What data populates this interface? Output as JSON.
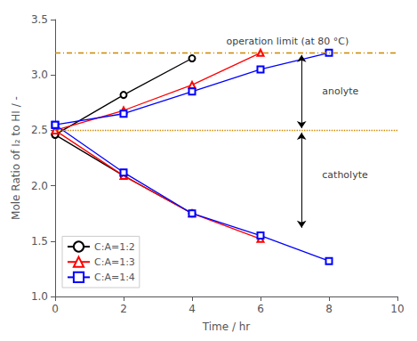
{
  "chart_data": {
    "type": "line",
    "xlabel": "Time / hr",
    "ylabel": "Mole Ratio of I₂ to HI / -",
    "xlim": [
      0,
      10
    ],
    "ylim": [
      1.0,
      3.5
    ],
    "xticks": [
      0,
      2,
      4,
      6,
      8,
      10
    ],
    "yticks": [
      {
        "value": 1.0,
        "label": "1.0"
      },
      1.5,
      {
        "value": 2.0,
        "label": "2.0"
      },
      2.5,
      {
        "value": 3.0,
        "label": "3.0"
      },
      3.5
    ],
    "grid": false,
    "legend": "lower left",
    "series": [
      {
        "name": "C:A=1:2",
        "color": "black",
        "marker": "open circle",
        "x": [
          0,
          2,
          4
        ],
        "values": [
          2.46,
          2.82,
          3.15
        ]
      },
      {
        "name": "C:A=1:2",
        "color": "black",
        "marker": "open circle",
        "x": [
          0,
          2,
          4
        ],
        "values": [
          2.46,
          2.09,
          1.75
        ]
      },
      {
        "name": "C:A=1:3",
        "color": "red",
        "marker": "open triangle",
        "x": [
          0,
          2,
          4,
          6
        ],
        "values": [
          2.5,
          2.68,
          2.91,
          3.2
        ]
      },
      {
        "name": "C:A=1:3",
        "color": "red",
        "marker": "open triangle",
        "x": [
          0,
          2,
          4,
          6
        ],
        "values": [
          2.5,
          2.09,
          1.75,
          1.52
        ]
      },
      {
        "name": "C:A=1:4",
        "color": "blue",
        "marker": "open square",
        "x": [
          0,
          2,
          4,
          6,
          8
        ],
        "values": [
          2.55,
          2.65,
          2.85,
          3.05,
          3.2
        ]
      },
      {
        "name": "C:A=1:4",
        "color": "blue",
        "marker": "open square",
        "x": [
          0,
          2,
          4,
          6,
          8
        ],
        "values": [
          2.55,
          2.12,
          1.75,
          1.55,
          1.32
        ]
      }
    ],
    "reference_lines": [
      {
        "y": 3.2,
        "x": [
          0,
          10
        ],
        "color": "#CC8800",
        "line_style": "dashdot"
      },
      {
        "y": 2.5,
        "x": [
          0,
          10
        ],
        "color": "#CC8800",
        "line_style": "dotted"
      }
    ],
    "annotations": [
      {
        "text": "operation limit (at 80 °C)",
        "x": 5.0,
        "y": 3.3
      },
      {
        "text": "anolyte",
        "x": 7.8,
        "y": 2.85
      },
      {
        "text": "catholyte",
        "x": 7.8,
        "y": 2.1
      }
    ],
    "arrows": [
      {
        "x": 7.2,
        "y": [
          2.52,
          3.18
        ]
      },
      {
        "x": 7.2,
        "y": [
          2.48,
          1.62
        ]
      }
    ]
  }
}
